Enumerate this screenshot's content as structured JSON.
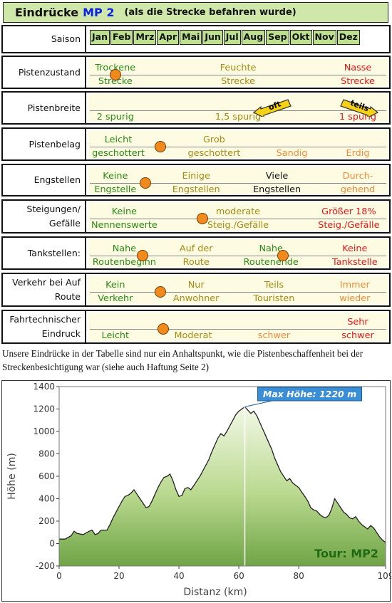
{
  "header": {
    "title": "Eindrücke",
    "route": "MP 2",
    "subtitle": "(als die Strecke befahren wurde)"
  },
  "season": {
    "label": "Saison",
    "months": [
      "Jan",
      "Feb",
      "Mrz",
      "Apr",
      "Mai",
      "Jun",
      "Jul",
      "Aug",
      "Sep",
      "Okt",
      "Nov",
      "Dez"
    ]
  },
  "rows": [
    {
      "label": "Pistenzustand",
      "dots": [
        0.09
      ],
      "items": [
        {
          "text": "Trockene",
          "x": 0.09,
          "y": 8,
          "c": "g"
        },
        {
          "text": "Strecke",
          "x": 0.09,
          "y": 27,
          "c": "g"
        },
        {
          "text": "Feuchte",
          "x": 0.5,
          "y": 8,
          "c": "o"
        },
        {
          "text": "Strecke",
          "x": 0.5,
          "y": 27,
          "c": "o"
        },
        {
          "text": "Nasse",
          "x": 0.9,
          "y": 8,
          "c": "r"
        },
        {
          "text": "Strecke",
          "x": 0.9,
          "y": 27,
          "c": "r"
        }
      ]
    },
    {
      "label": "Pistenbreite",
      "dots": [],
      "tags": [
        {
          "text": "oft",
          "x": 0.62
        },
        {
          "text": "teils",
          "x": 0.9
        }
      ],
      "items": [
        {
          "text": "2 spurig",
          "x": 0.09,
          "y": 27,
          "c": "g"
        },
        {
          "text": "1,5 spurig",
          "x": 0.5,
          "y": 27,
          "c": "o"
        },
        {
          "text": "1 spurig",
          "x": 0.9,
          "y": 27,
          "c": "r"
        }
      ]
    },
    {
      "label": "Pistenbelag",
      "dots": [
        0.24
      ],
      "items": [
        {
          "text": "Leicht",
          "x": 0.1,
          "y": 8,
          "c": "g"
        },
        {
          "text": "geschottert",
          "x": 0.1,
          "y": 27,
          "c": "g"
        },
        {
          "text": "Grob",
          "x": 0.42,
          "y": 8,
          "c": "o"
        },
        {
          "text": "geschottert",
          "x": 0.42,
          "y": 27,
          "c": "o"
        },
        {
          "text": "Sandig",
          "x": 0.68,
          "y": 27,
          "c": "or"
        },
        {
          "text": "Erdig",
          "x": 0.9,
          "y": 27,
          "c": "or"
        }
      ]
    },
    {
      "label": "Engstellen",
      "dots": [
        0.19
      ],
      "items": [
        {
          "text": "Keine",
          "x": 0.09,
          "y": 8,
          "c": "g"
        },
        {
          "text": "Engstelle",
          "x": 0.09,
          "y": 27,
          "c": "g"
        },
        {
          "text": "Einige",
          "x": 0.36,
          "y": 8,
          "c": "o"
        },
        {
          "text": "Engstellen",
          "x": 0.36,
          "y": 27,
          "c": "o"
        },
        {
          "text": "Viele",
          "x": 0.63,
          "y": 8,
          "c": "b"
        },
        {
          "text": "Engstellen",
          "x": 0.63,
          "y": 27,
          "c": "b"
        },
        {
          "text": "Durch-",
          "x": 0.9,
          "y": 8,
          "c": "or"
        },
        {
          "text": "gehend",
          "x": 0.9,
          "y": 27,
          "c": "or"
        }
      ]
    },
    {
      "label": "Steigungen/ Gefälle",
      "dots": [
        0.38
      ],
      "items": [
        {
          "text": "Keine",
          "x": 0.12,
          "y": 8,
          "c": "g"
        },
        {
          "text": "Nennenswerte",
          "x": 0.12,
          "y": 27,
          "c": "g"
        },
        {
          "text": "moderate",
          "x": 0.5,
          "y": 8,
          "c": "o"
        },
        {
          "text": "Steig./Gefälle",
          "x": 0.5,
          "y": 27,
          "c": "o"
        },
        {
          "text": "Größer 18%",
          "x": 0.87,
          "y": 8,
          "c": "r"
        },
        {
          "text": "Steig./Gefälle",
          "x": 0.87,
          "y": 27,
          "c": "r"
        }
      ]
    },
    {
      "label": "Tankstellen:",
      "dots": [
        0.18,
        0.65
      ],
      "items": [
        {
          "text": "Nahe",
          "x": 0.12,
          "y": 8,
          "c": "g"
        },
        {
          "text": "Routenbeginn",
          "x": 0.12,
          "y": 27,
          "c": "g"
        },
        {
          "text": "Auf der",
          "x": 0.36,
          "y": 8,
          "c": "o"
        },
        {
          "text": "Route",
          "x": 0.36,
          "y": 27,
          "c": "o"
        },
        {
          "text": "Nahe",
          "x": 0.61,
          "y": 8,
          "c": "g"
        },
        {
          "text": "Routenende",
          "x": 0.61,
          "y": 27,
          "c": "g"
        },
        {
          "text": "Keine",
          "x": 0.89,
          "y": 8,
          "c": "r"
        },
        {
          "text": "Tankstelle",
          "x": 0.89,
          "y": 27,
          "c": "r"
        }
      ]
    },
    {
      "label": "Verkehr bei Auf Route",
      "dots": [
        0.24
      ],
      "items": [
        {
          "text": "Kein",
          "x": 0.09,
          "y": 8,
          "c": "g"
        },
        {
          "text": "Verkehr",
          "x": 0.09,
          "y": 27,
          "c": "g"
        },
        {
          "text": "Nur",
          "x": 0.36,
          "y": 8,
          "c": "o"
        },
        {
          "text": "Anwohner",
          "x": 0.36,
          "y": 27,
          "c": "o"
        },
        {
          "text": "Teils",
          "x": 0.62,
          "y": 8,
          "c": "o"
        },
        {
          "text": "Touristen",
          "x": 0.62,
          "y": 27,
          "c": "o"
        },
        {
          "text": "Immer",
          "x": 0.89,
          "y": 8,
          "c": "or"
        },
        {
          "text": "wieder",
          "x": 0.89,
          "y": 27,
          "c": "or"
        }
      ]
    },
    {
      "label": "Fahrtechnischer Eindruck",
      "dots": [
        0.25
      ],
      "items": [
        {
          "text": "Leicht",
          "x": 0.09,
          "y": 27,
          "c": "g"
        },
        {
          "text": "Moderat",
          "x": 0.35,
          "y": 27,
          "c": "o"
        },
        {
          "text": "schwer",
          "x": 0.62,
          "y": 27,
          "c": "or"
        },
        {
          "text": "Sehr",
          "x": 0.9,
          "y": 8,
          "c": "r"
        },
        {
          "text": "schwer",
          "x": 0.9,
          "y": 27,
          "c": "r"
        }
      ]
    }
  ],
  "note": "Unsere Eindrücke in der Tabelle sind nur ein Anhaltspunkt, wie die Pistenbeschaffenheit bei der Streckenbesichtigung war (siehe auch Haftung Seite 2)",
  "chart_data": {
    "type": "area",
    "xlabel": "Distanz  (km)",
    "ylabel": "Höhe  (m)",
    "xlim": [
      0,
      109
    ],
    "ylim": [
      -200,
      1400
    ],
    "xticks": [
      0,
      20,
      40,
      60,
      80,
      109
    ],
    "yticks": [
      -200,
      0,
      200,
      400,
      600,
      800,
      1000,
      1200,
      1400
    ],
    "annotation": "Max Höhe: 1220 m",
    "max_x": 62,
    "max_y": 1220,
    "tour_label": "Tour: MP2",
    "x": [
      0,
      2,
      4,
      5,
      6,
      8,
      10,
      11,
      12,
      13,
      14,
      16,
      17,
      18,
      19,
      20,
      21,
      22,
      23,
      24,
      25,
      26,
      27,
      28,
      29,
      30,
      31,
      32,
      33,
      34,
      35,
      36,
      37,
      38,
      39,
      40,
      41,
      42,
      43,
      44,
      45,
      46,
      47,
      48,
      49,
      50,
      51,
      52,
      53,
      54,
      55,
      56,
      57,
      58,
      59,
      60,
      61,
      62,
      63,
      64,
      65,
      66,
      67,
      68,
      69,
      70,
      71,
      72,
      73,
      74,
      75,
      76,
      77,
      78,
      79,
      80,
      81,
      82,
      83,
      84,
      85,
      86,
      87,
      88,
      89,
      90,
      91,
      92,
      93,
      94,
      95,
      96,
      97,
      98,
      99,
      100,
      101,
      102,
      103,
      104,
      105,
      106,
      107,
      108,
      109
    ],
    "y": [
      40,
      40,
      70,
      110,
      90,
      80,
      110,
      120,
      80,
      90,
      120,
      120,
      170,
      230,
      280,
      330,
      380,
      420,
      430,
      450,
      480,
      440,
      400,
      360,
      320,
      330,
      380,
      440,
      500,
      550,
      590,
      600,
      620,
      560,
      480,
      420,
      430,
      490,
      500,
      480,
      520,
      560,
      600,
      650,
      700,
      750,
      820,
      880,
      940,
      980,
      960,
      1000,
      1050,
      1100,
      1150,
      1180,
      1200,
      1220,
      1190,
      1160,
      1180,
      1140,
      1080,
      1020,
      960,
      900,
      840,
      760,
      700,
      640,
      600,
      560,
      580,
      540,
      520,
      500,
      460,
      420,
      380,
      320,
      300,
      290,
      260,
      240,
      230,
      250,
      310,
      400,
      360,
      320,
      280,
      260,
      230,
      220,
      240,
      200,
      170,
      150,
      130,
      160,
      140,
      100,
      60,
      30,
      10
    ]
  }
}
